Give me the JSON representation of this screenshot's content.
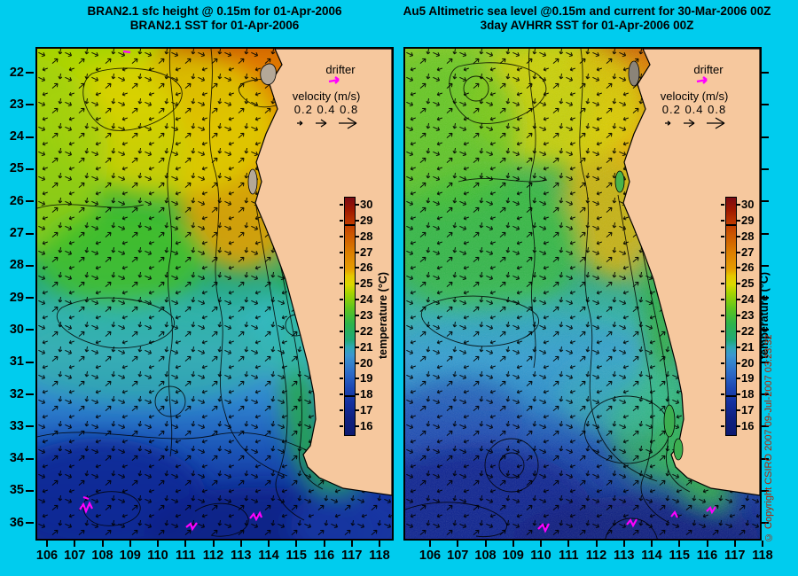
{
  "page": {
    "background_color": "#00CCEE",
    "land_color": "#F6C89E",
    "title_color": "#000000",
    "copyright_color": "#B22200",
    "drifter_track_color": "#FF00FF"
  },
  "left_panel": {
    "title_line1": "BRAN2.1 sfc height @ 0.15m for 01-Apr-2006",
    "title_line2": "BRAN2.1 SST for 01-Apr-2006"
  },
  "right_panel": {
    "title_line1": "Au5 Altimetric sea level  @0.15m and current for 30-Mar-2006 00Z",
    "title_line2": "3day AVHRR SST for 01-Apr-2006 00Z"
  },
  "axes": {
    "x_ticks": [
      "106",
      "107",
      "108",
      "109",
      "110",
      "111",
      "112",
      "113",
      "114",
      "115",
      "116",
      "117",
      "118"
    ],
    "y_ticks": [
      "22",
      "23",
      "24",
      "25",
      "26",
      "27",
      "28",
      "29",
      "30",
      "31",
      "32",
      "33",
      "34",
      "35",
      "36"
    ]
  },
  "colorbar": {
    "label": "temperature (°C)",
    "ticks": [
      "30",
      "29",
      "28",
      "27",
      "26",
      "25",
      "24",
      "23",
      "22",
      "21",
      "20",
      "19",
      "18",
      "17",
      "16"
    ]
  },
  "legend": {
    "drifter_label": "drifter",
    "velocity_label": "velocity (m/s)",
    "velocity_values": "0.2 0.4 0.8"
  },
  "copyright": "© Copyright CSIRO 2007  09-Jul-2007 03:23:32",
  "chart_data": {
    "type": "heatmap",
    "panels": [
      {
        "title": [
          "BRAN2.1 sfc height @ 0.15m for 01-Apr-2006",
          "BRAN2.1 SST for 01-Apr-2006"
        ],
        "x_range": [
          106,
          118
        ],
        "y_range": [
          22,
          36
        ],
        "colorbar_label": "temperature (°C)",
        "colorbar_range": [
          16,
          30
        ],
        "velocity_scale_m_per_s": [
          0.2,
          0.4,
          0.8
        ]
      },
      {
        "title": [
          "Au5 Altimetric sea level  @0.15m and current for 30-Mar-2006 00Z",
          "3day AVHRR SST for 01-Apr-2006 00Z"
        ],
        "x_range": [
          106,
          118
        ],
        "y_range": [
          22,
          36
        ],
        "colorbar_label": "temperature (°C)",
        "colorbar_range": [
          16,
          30
        ],
        "velocity_scale_m_per_s": [
          0.2,
          0.4,
          0.8
        ]
      }
    ]
  }
}
